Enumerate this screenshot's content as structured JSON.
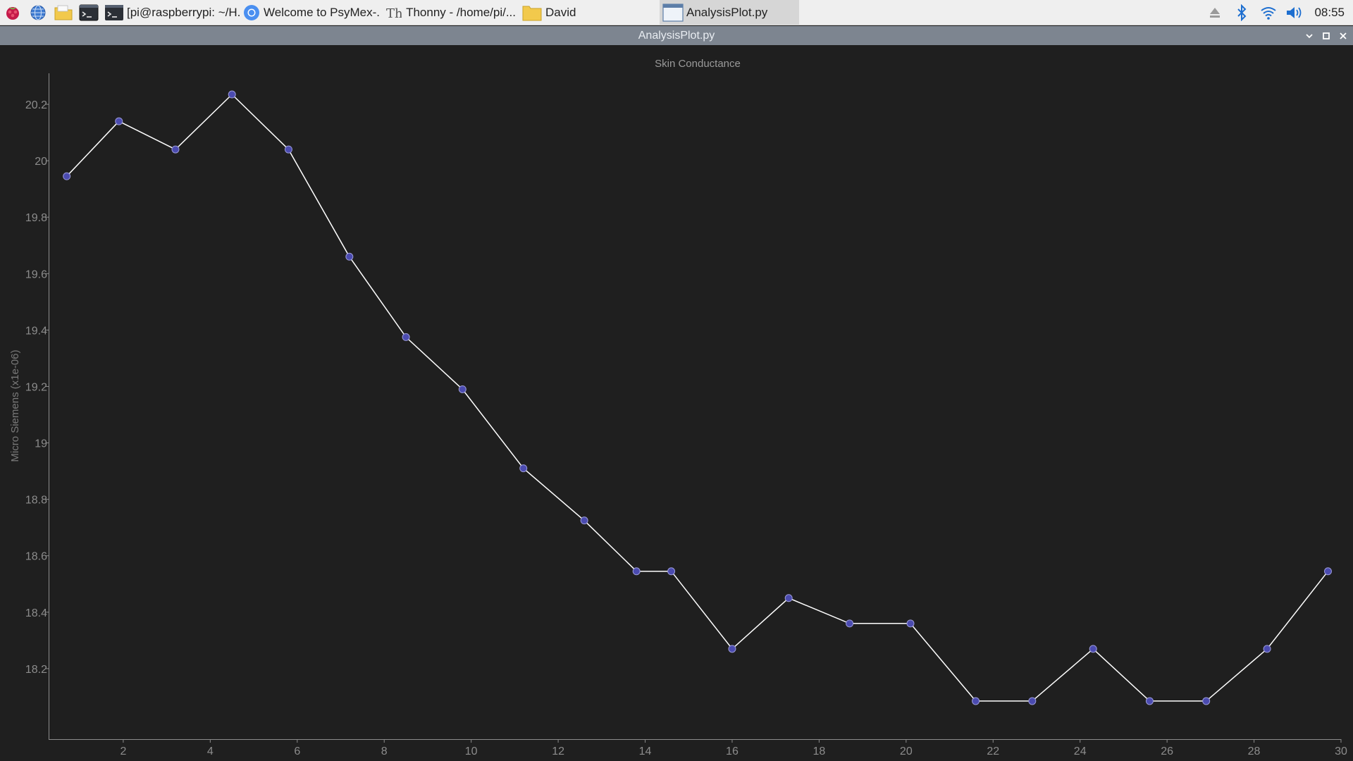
{
  "taskbar": {
    "launchers": [
      {
        "name": "raspberry-menu-icon"
      },
      {
        "name": "web-browser-icon"
      },
      {
        "name": "file-manager-icon"
      },
      {
        "name": "terminal-icon"
      }
    ],
    "tasks": [
      {
        "label": "[pi@raspberrypi: ~/H...",
        "icon": "terminal-icon",
        "active": false
      },
      {
        "label": "Welcome to PsyMex-...",
        "icon": "chromium-icon",
        "active": false
      },
      {
        "label": "Thonny  -  /home/pi/...",
        "icon": "thonny-icon",
        "active": false
      },
      {
        "label": "David",
        "icon": "folder-icon",
        "active": false
      },
      {
        "label": "AnalysisPlot.py",
        "icon": "window-icon",
        "active": true
      }
    ],
    "clock": "08:55"
  },
  "window": {
    "title": "AnalysisPlot.py"
  },
  "chart_data": {
    "type": "line",
    "title": "Skin Conductance",
    "xlabel": "",
    "ylabel": "Micro Siemens (x1e-06)",
    "xlim": [
      0.3,
      30
    ],
    "ylim": [
      17.95,
      20.31
    ],
    "xticks": [
      2,
      4,
      6,
      8,
      10,
      12,
      14,
      16,
      18,
      20,
      22,
      24,
      26,
      28,
      30
    ],
    "yticks": [
      18.2,
      18.4,
      18.6,
      18.8,
      19,
      19.2,
      19.4,
      19.6,
      19.8,
      20,
      20.2
    ],
    "grid": false,
    "colors": {
      "line": "#ffffff",
      "marker_fill": "#4b4bb0",
      "marker_edge": "#9a9ad8"
    },
    "series": [
      {
        "x": [
          0.7,
          1.9,
          3.2,
          4.5,
          5.8,
          7.2,
          8.5,
          9.8,
          11.2,
          12.6,
          13.8,
          14.6,
          16.0,
          17.3,
          18.7,
          20.1,
          21.6,
          22.9,
          24.3,
          25.6,
          26.9,
          28.3,
          29.7
        ],
        "y": [
          19.945,
          20.14,
          20.04,
          20.235,
          20.04,
          19.66,
          19.375,
          19.19,
          18.91,
          18.725,
          18.545,
          18.545,
          18.27,
          18.45,
          18.36,
          18.36,
          18.085,
          18.085,
          18.27,
          18.085,
          18.085,
          18.27,
          18.545
        ]
      }
    ]
  }
}
